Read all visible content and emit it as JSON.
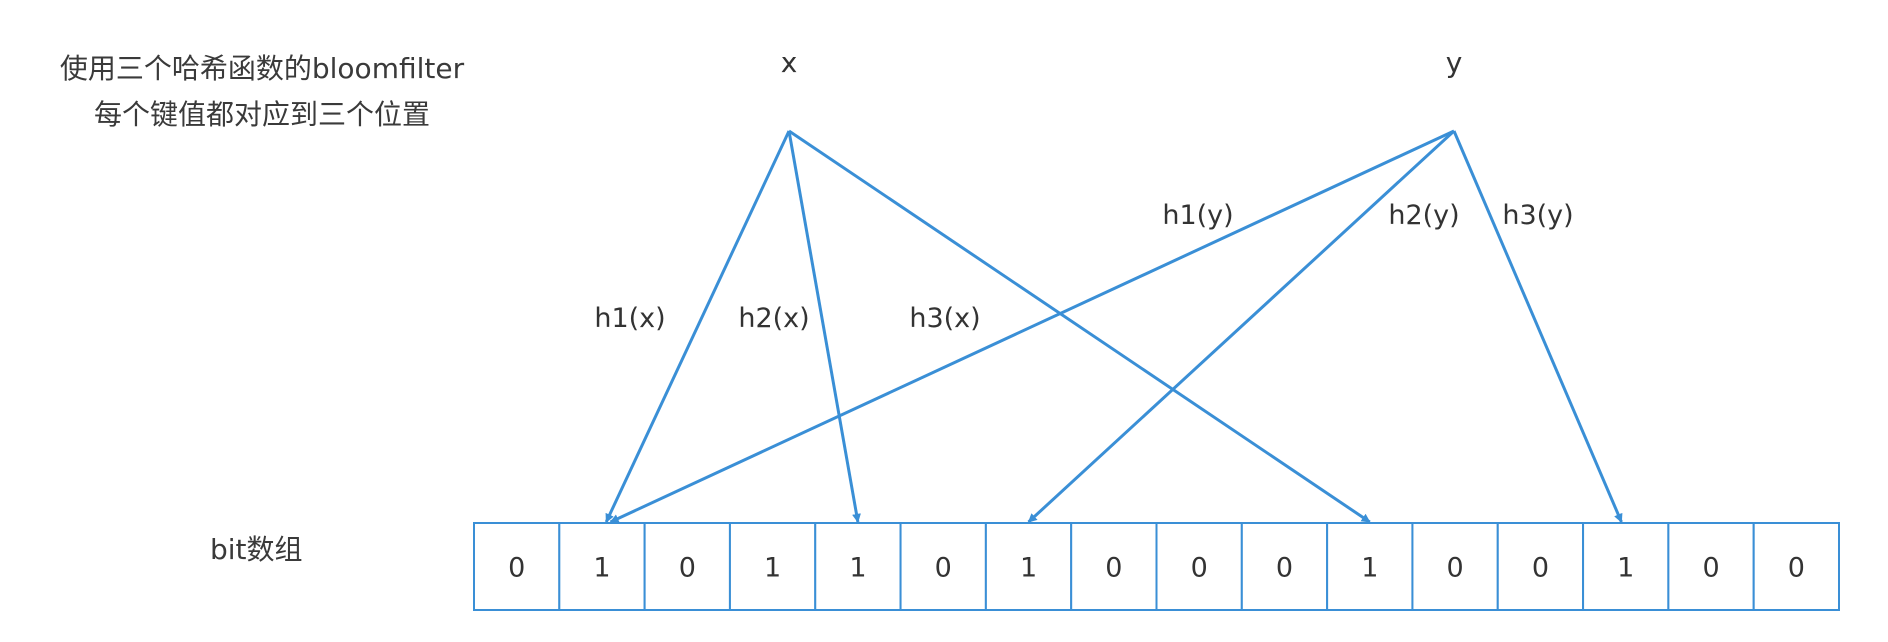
{
  "caption": {
    "line1": "使用三个哈希函数的bloomfilter",
    "line2": "每个键值都对应到三个位置"
  },
  "bit_array_label": "bit数组",
  "keys": [
    {
      "name": "x",
      "hashes": [
        {
          "label": "h1(x)",
          "target_index": 1
        },
        {
          "label": "h2(x)",
          "target_index": 4
        },
        {
          "label": "h3(x)",
          "target_index": 10
        }
      ]
    },
    {
      "name": "y",
      "hashes": [
        {
          "label": "h1(y)",
          "target_index": 1
        },
        {
          "label": "h2(y)",
          "target_index": 6
        },
        {
          "label": "h3(y)",
          "target_index": 13
        }
      ]
    }
  ],
  "bits": [
    "0",
    "1",
    "0",
    "1",
    "1",
    "0",
    "1",
    "0",
    "0",
    "0",
    "1",
    "0",
    "0",
    "1",
    "0",
    "0"
  ],
  "colors": {
    "arrow": "#3a8fd6",
    "cell_border": "#3a8fd6",
    "text": "#333333"
  }
}
